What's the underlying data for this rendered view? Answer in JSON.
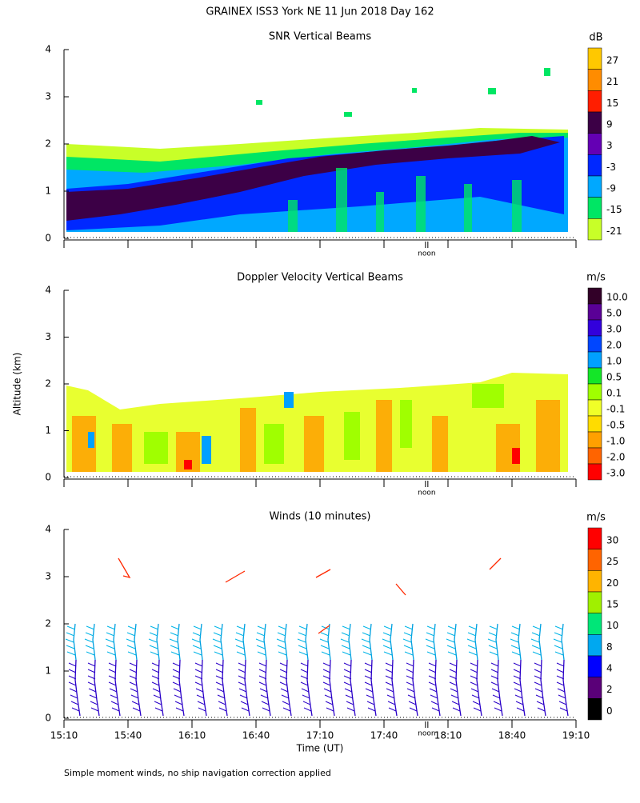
{
  "title": "GRAINEX ISS3 York NE  11 Jun 2018 Day 162",
  "ylabel": "Altitude (km)",
  "xlabel": "Time (UT)",
  "footnote": "Simple moment winds, no ship navigation correction applied",
  "xlim": [
    910,
    1150
  ],
  "xticks": [
    {
      "value": 910,
      "label": "15:10"
    },
    {
      "value": 940,
      "label": "15:40"
    },
    {
      "value": 970,
      "label": "16:10"
    },
    {
      "value": 1000,
      "label": "16:40"
    },
    {
      "value": 1030,
      "label": "17:10"
    },
    {
      "value": 1060,
      "label": "17:40"
    },
    {
      "value": 1090,
      "label": "18:10"
    },
    {
      "value": 1120,
      "label": "18:40"
    },
    {
      "value": 1150,
      "label": "19:10"
    }
  ],
  "chart_data": [
    {
      "type": "contour",
      "title": "SNR Vertical Beams",
      "ylim": [
        0,
        4
      ],
      "yticks": [
        0,
        1,
        2,
        3,
        4
      ],
      "annotation": {
        "x": 1080,
        "label": "noon"
      },
      "colorbar": {
        "label": "dB",
        "ticks": [
          27,
          21,
          15,
          9,
          3,
          -3,
          -9,
          -15,
          -21
        ],
        "colors": [
          "#ffc800",
          "#ff8c00",
          "#ff1e00",
          "#3c0046",
          "#6400b4",
          "#0028ff",
          "#00a8ff",
          "#00e664",
          "#c8ff28"
        ]
      }
    },
    {
      "type": "contour",
      "title": "Doppler Velocity Vertical Beams",
      "ylim": [
        0,
        4
      ],
      "yticks": [
        0,
        1,
        2,
        3,
        4
      ],
      "annotation": {
        "x": 1080,
        "label": "noon"
      },
      "colorbar": {
        "label": "m/s",
        "ticks": [
          {
            "value": 10,
            "label": "10.0"
          },
          {
            "value": 5,
            "label": "5.0"
          },
          {
            "value": 3,
            "label": "3.0"
          },
          {
            "value": 2,
            "label": "2.0"
          },
          {
            "value": 1,
            "label": "1.0"
          },
          0.5,
          0.1,
          -0.1,
          -0.5,
          {
            "value": -1,
            "label": "-1.0"
          },
          {
            "value": -2,
            "label": "-2.0"
          },
          {
            "value": -3,
            "label": "-3.0"
          }
        ],
        "colors": [
          "#320028",
          "#5a0096",
          "#3200dc",
          "#0046ff",
          "#00a0ff",
          "#14e628",
          "#a0ff00",
          "#f0ff28",
          "#ffdc00",
          "#ffa000",
          "#ff6400",
          "#ff0000"
        ]
      }
    },
    {
      "type": "barbs",
      "title": "Winds (10 minutes)",
      "ylim": [
        0,
        4
      ],
      "yticks": [
        0,
        1,
        2,
        3,
        4
      ],
      "annotation": {
        "x": 1080,
        "label": "noon"
      },
      "colorbar": {
        "label": "m/s",
        "ticks": [
          30,
          25,
          20,
          15,
          10,
          8,
          4,
          2,
          0
        ],
        "colors": [
          "#ff0000",
          "#ff6400",
          "#ffb400",
          "#a0f000",
          "#00e678",
          "#00a8f0",
          "#0000ff",
          "#5a0078",
          "#000000"
        ]
      }
    }
  ]
}
